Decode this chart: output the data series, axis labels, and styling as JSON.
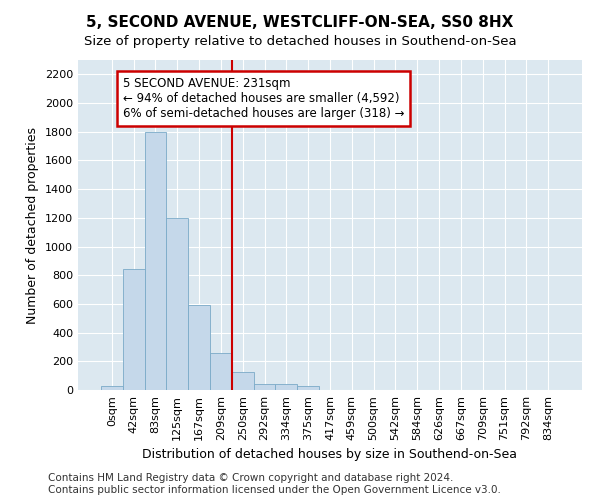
{
  "title": "5, SECOND AVENUE, WESTCLIFF-ON-SEA, SS0 8HX",
  "subtitle": "Size of property relative to detached houses in Southend-on-Sea",
  "xlabel": "Distribution of detached houses by size in Southend-on-Sea",
  "ylabel": "Number of detached properties",
  "categories": [
    "0sqm",
    "42sqm",
    "83sqm",
    "125sqm",
    "167sqm",
    "209sqm",
    "250sqm",
    "292sqm",
    "334sqm",
    "375sqm",
    "417sqm",
    "459sqm",
    "500sqm",
    "542sqm",
    "584sqm",
    "626sqm",
    "667sqm",
    "709sqm",
    "751sqm",
    "792sqm",
    "834sqm"
  ],
  "values": [
    25,
    845,
    1800,
    1200,
    590,
    255,
    125,
    45,
    45,
    30,
    0,
    0,
    0,
    0,
    0,
    0,
    0,
    0,
    0,
    0,
    0
  ],
  "bar_color": "#c5d8ea",
  "bar_edge_color": "#7aaac8",
  "vline_x_idx": 6,
  "vline_color": "#cc0000",
  "annotation_line1": "5 SECOND AVENUE: 231sqm",
  "annotation_line2": "← 94% of detached houses are smaller (4,592)",
  "annotation_line3": "6% of semi-detached houses are larger (318) →",
  "annotation_box_color": "#ffffff",
  "annotation_box_edge": "#cc0000",
  "ylim": [
    0,
    2300
  ],
  "yticks": [
    0,
    200,
    400,
    600,
    800,
    1000,
    1200,
    1400,
    1600,
    1800,
    2000,
    2200
  ],
  "footer_line1": "Contains HM Land Registry data © Crown copyright and database right 2024.",
  "footer_line2": "Contains public sector information licensed under the Open Government Licence v3.0.",
  "fig_bg_color": "#ffffff",
  "plot_bg_color": "#dce8f0",
  "grid_color": "#ffffff",
  "title_fontsize": 11,
  "subtitle_fontsize": 9.5,
  "axis_label_fontsize": 9,
  "tick_fontsize": 8,
  "footer_fontsize": 7.5,
  "annot_fontsize": 8.5
}
